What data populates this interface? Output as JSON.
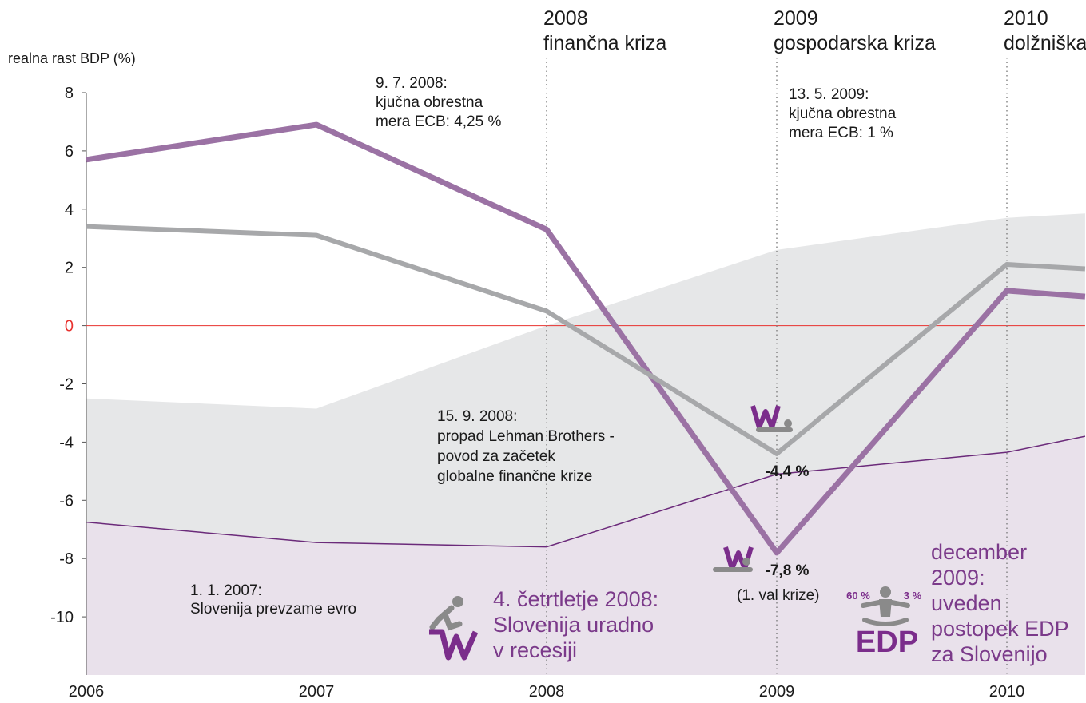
{
  "chart_data": {
    "type": "line",
    "y_label": "realna rast BDP (%)",
    "x": [
      2006,
      2007,
      2008,
      2009,
      2010,
      2010.34
    ],
    "xlim": [
      2006,
      2010.34
    ],
    "xticks": [
      2006,
      2007,
      2008,
      2009,
      2010
    ],
    "ylim": [
      -12,
      8
    ],
    "yticks": [
      8,
      6,
      4,
      2,
      0,
      -2,
      -4,
      -6,
      -8,
      -10
    ],
    "zero_line_color": "#e8322f",
    "series": [
      {
        "color": "#9b72a4",
        "values": [
          5.7,
          6.9,
          3.3,
          -7.8,
          1.2,
          1.0
        ],
        "value_labels": [
          null,
          null,
          null,
          "-7,8 %",
          null,
          null
        ]
      },
      {
        "color": "#a7a8aa",
        "values": [
          3.4,
          3.1,
          0.5,
          -4.4,
          2.1,
          1.95
        ],
        "value_labels": [
          null,
          null,
          null,
          "-4,4 %",
          null,
          null
        ]
      }
    ],
    "areas": [
      {
        "color": "#e6e7e8",
        "values": [
          -2.5,
          -2.85,
          0.0,
          2.6,
          3.7,
          3.85
        ]
      },
      {
        "color": "#e9e1eb",
        "line_color": "#6b2a7a",
        "values": [
          -6.75,
          -7.45,
          -7.6,
          -5.1,
          -4.35,
          -3.8
        ]
      }
    ],
    "events": [
      {
        "x": 2008,
        "lines": [
          "2008",
          "finančna kriza"
        ]
      },
      {
        "x": 2009,
        "lines": [
          "2009",
          "gospodarska kriza"
        ]
      },
      {
        "x": 2010,
        "lines": [
          "2010",
          "dolžniška"
        ]
      }
    ],
    "annotations": [
      {
        "lines": [
          "9. 7. 2008:",
          "kjučna obrestna",
          "mera ECB: 4,25 %"
        ]
      },
      {
        "lines": [
          "13. 5. 2009:",
          "kjučna obrestna",
          "mera ECB: 1 %"
        ]
      },
      {
        "lines": [
          "15. 9. 2008:",
          "propad Lehman Brothers -",
          "povod za začetek",
          "globalne finančne krize"
        ]
      },
      {
        "lines": [
          "1. 1. 2007:",
          "Slovenija prevzame evro"
        ]
      },
      {
        "lines": [
          "4. četrtletje 2008:",
          "Slovenija uradno",
          "v recesiji"
        ],
        "color": "#7b3a8a"
      },
      {
        "lines": [
          "december",
          "2009:",
          "uveden",
          "postopek EDP",
          "za Slovenijo"
        ],
        "color": "#7b3a8a"
      },
      {
        "lines": [
          "(1. val krize)"
        ]
      }
    ],
    "edp_icon": {
      "title": "EDP",
      "left": "60 %",
      "right": "3 %"
    }
  }
}
